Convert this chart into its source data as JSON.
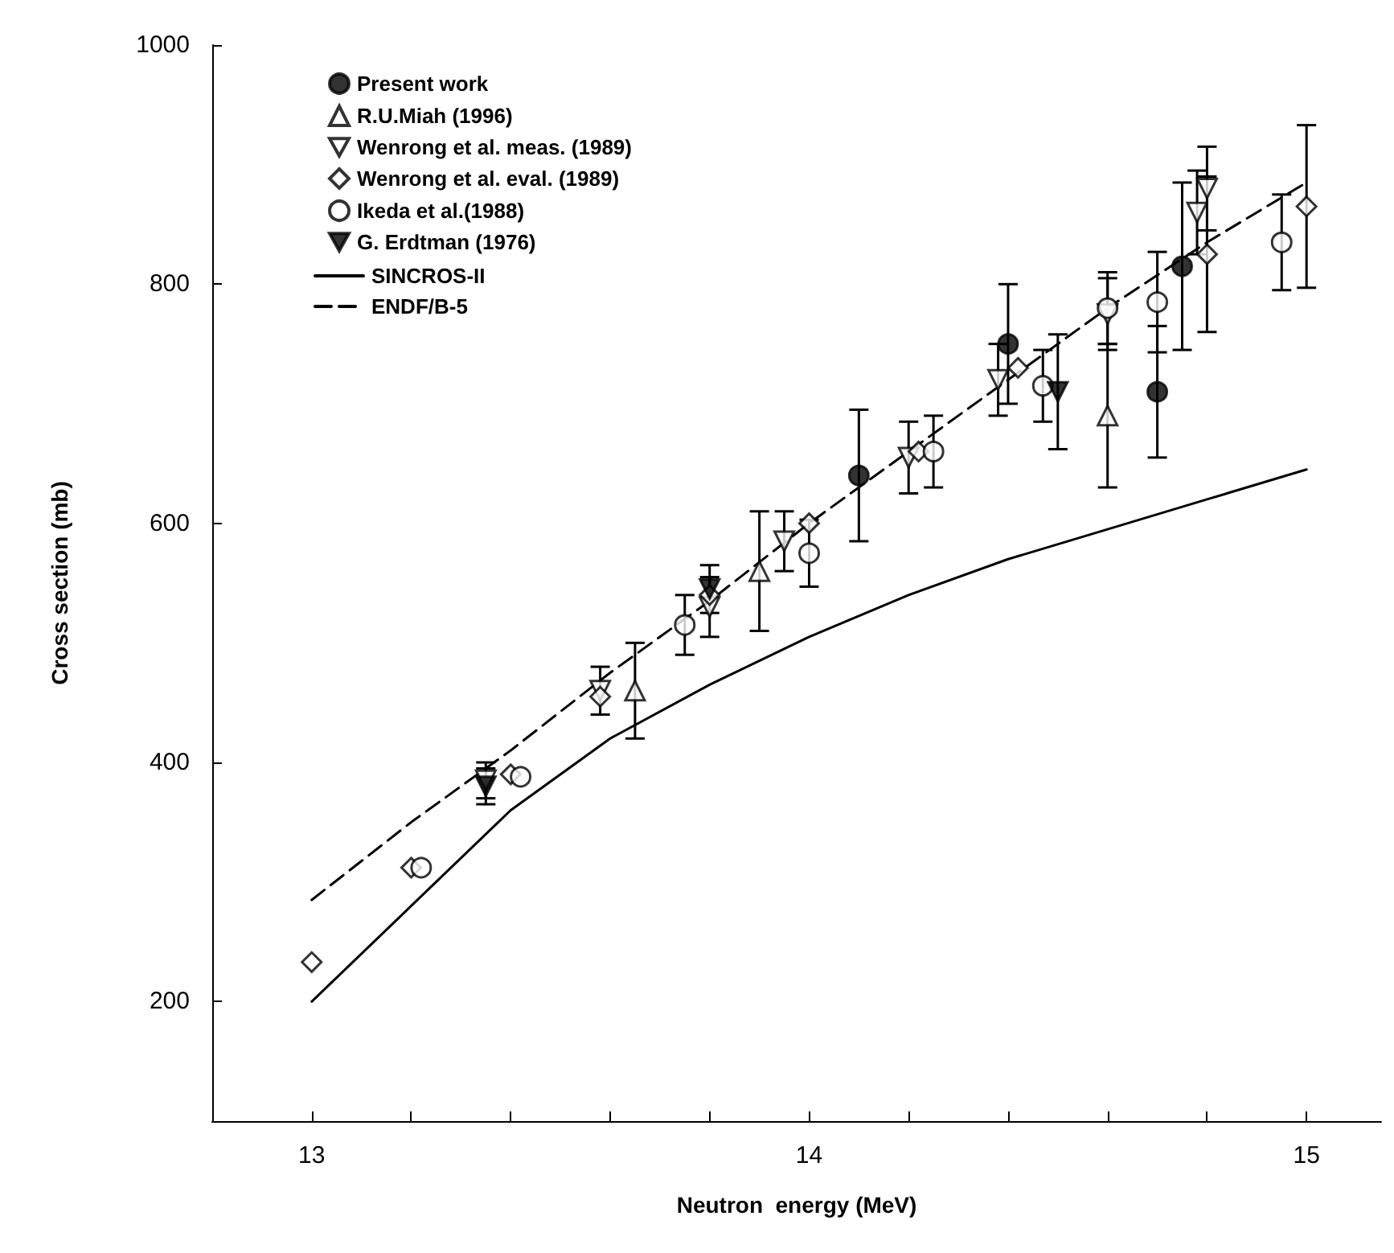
{
  "chart_data": {
    "type": "scatter",
    "xlabel": "Neutron  energy (MeV)",
    "ylabel": "Cross section (mb)",
    "xlim": [
      12.8,
      15.15
    ],
    "ylim": [
      100,
      1000
    ],
    "xticks": [
      13,
      {
        "value": 13.2,
        "label": null
      },
      {
        "value": 13.4,
        "label": null
      },
      {
        "value": 13.6,
        "label": null
      },
      {
        "value": 13.8,
        "label": null
      },
      14,
      {
        "value": 14.2,
        "label": null
      },
      {
        "value": 14.4,
        "label": null
      },
      {
        "value": 14.6,
        "label": null
      },
      {
        "value": 14.8,
        "label": null
      },
      15
    ],
    "yticks": [
      200,
      400,
      600,
      800,
      1000
    ],
    "grid": false,
    "legend": "top left",
    "series": [
      {
        "name": "Present work",
        "color": "#000000",
        "marker": "circle",
        "x": [
          14.1,
          14.4,
          14.7,
          14.75
        ],
        "values": [
          640,
          750,
          710,
          815
        ],
        "errors": [
          55,
          50,
          55,
          70
        ]
      },
      {
        "name": "R.U.Miah (1996)",
        "color": "#ffffff",
        "marker": "triangle",
        "x": [
          13.65,
          13.9,
          14.6
        ],
        "values": [
          460,
          560,
          690
        ],
        "errors": [
          40,
          50,
          60
        ]
      },
      {
        "name": "Wenrong et al. meas. (1989)",
        "color": "#ffffff",
        "marker": "triangle-down",
        "x": [
          13.35,
          13.58,
          13.8,
          13.95,
          14.2,
          14.38,
          14.6,
          14.78,
          14.8
        ],
        "values": [
          385,
          460,
          530,
          585,
          655,
          720,
          775,
          860,
          880
        ],
        "errors": [
          15,
          20,
          25,
          25,
          30,
          30,
          30,
          35,
          35
        ]
      },
      {
        "name": "Wenrong et al. eval. (1989)",
        "color": "#ffffff",
        "marker": "diamond",
        "x": [
          13.0,
          13.2,
          13.4,
          13.58,
          13.8,
          14.0,
          14.22,
          14.42,
          14.8,
          15.0
        ],
        "values": [
          233,
          312,
          390,
          455,
          540,
          600,
          660,
          730,
          825,
          865
        ],
        "errors": [
          null,
          null,
          null,
          null,
          null,
          null,
          null,
          null,
          65,
          68
        ]
      },
      {
        "name": "Ikeda et al.(1988)",
        "color": "#ffffff",
        "marker": "circle",
        "x": [
          13.22,
          13.42,
          13.75,
          14.0,
          14.25,
          14.47,
          14.6,
          14.7,
          14.95
        ],
        "values": [
          312,
          388,
          515,
          575,
          660,
          715,
          780,
          785,
          835
        ],
        "errors": [
          null,
          null,
          25,
          28,
          30,
          30,
          30,
          42,
          40
        ]
      },
      {
        "name": "G. Erdtman (1976)",
        "color": "#000000",
        "marker": "triangle-down",
        "x": [
          13.35,
          13.8,
          14.5
        ],
        "values": [
          380,
          545,
          710
        ],
        "errors": [
          15,
          20,
          48
        ]
      },
      {
        "name": "SINCROS-II",
        "type": "line",
        "color": "#000000",
        "marker": "none",
        "line_style": "solid",
        "x": [
          13.0,
          13.2,
          13.4,
          13.6,
          13.8,
          14.0,
          14.2,
          14.4,
          14.6,
          14.8,
          15.0
        ],
        "values": [
          200,
          280,
          360,
          420,
          465,
          505,
          540,
          570,
          595,
          620,
          645
        ]
      },
      {
        "name": "ENDF/B-5",
        "type": "line",
        "color": "#000000",
        "marker": "none",
        "line_style": "dashed",
        "x": [
          13.0,
          13.2,
          13.4,
          13.6,
          13.8,
          14.0,
          14.2,
          14.4,
          14.6,
          14.8,
          15.0
        ],
        "values": [
          285,
          350,
          410,
          475,
          535,
          600,
          660,
          720,
          780,
          835,
          885
        ]
      }
    ]
  }
}
